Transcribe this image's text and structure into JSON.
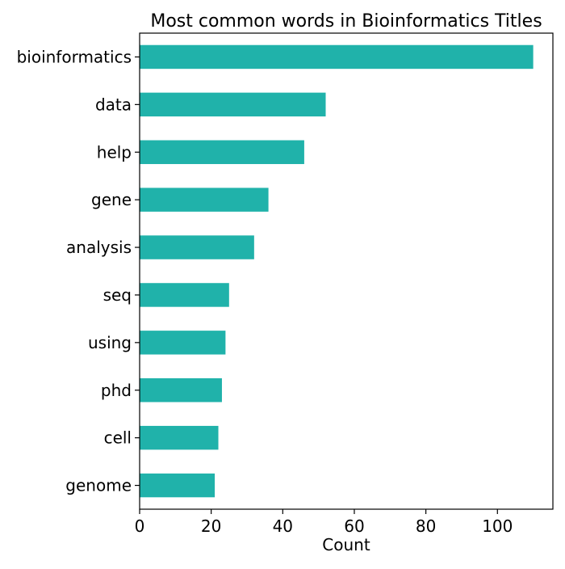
{
  "chart_data": {
    "type": "bar",
    "orientation": "horizontal",
    "title": "Most common words in Bioinformatics Titles",
    "xlabel": "Count",
    "ylabel": "",
    "categories": [
      "bioinformatics",
      "data",
      "help",
      "gene",
      "analysis",
      "seq",
      "using",
      "phd",
      "cell",
      "genome"
    ],
    "values": [
      110,
      52,
      46,
      36,
      32,
      25,
      24,
      23,
      22,
      21
    ],
    "xlim": [
      0,
      115.5
    ],
    "xticks": [
      0,
      20,
      40,
      60,
      80,
      100
    ],
    "xtick_labels": [
      "0",
      "20",
      "40",
      "60",
      "80",
      "100"
    ],
    "bar_color": "#20B2AA",
    "grid": false,
    "legend": false
  }
}
